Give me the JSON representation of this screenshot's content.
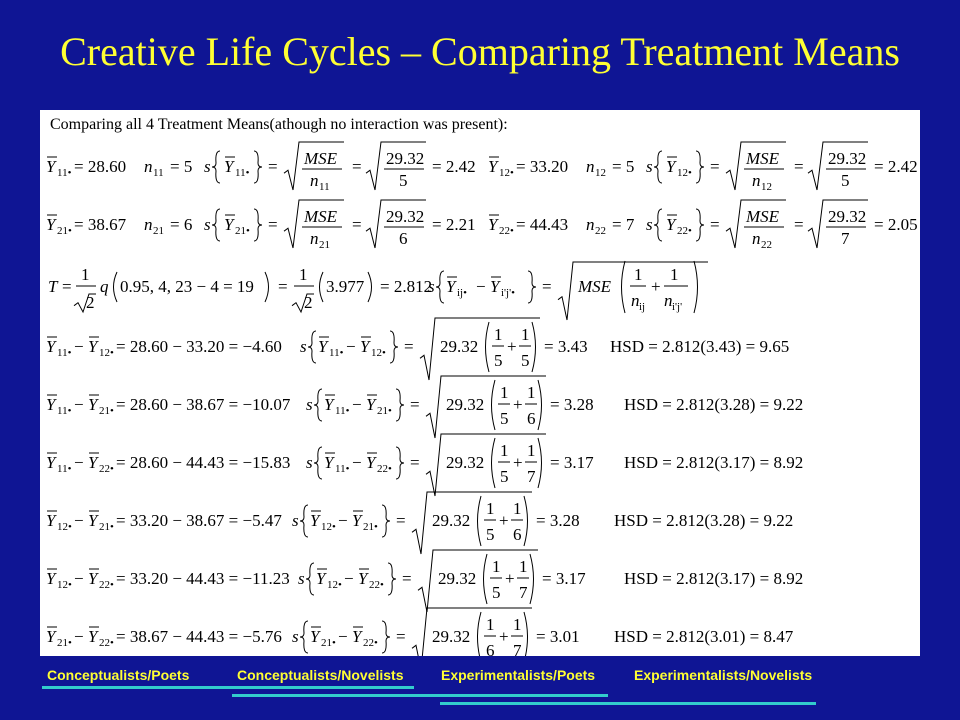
{
  "title": "Creative Life Cycles – Comparing Treatment Means",
  "intro": "Comparing all 4 Treatment Means(athough no interaction was present):",
  "means": [
    {
      "id": "11",
      "sub": "11",
      "mean": "28.60",
      "n": "5",
      "denom": "5",
      "se": "2.42"
    },
    {
      "id": "12",
      "sub": "12",
      "mean": "33.20",
      "n": "5",
      "denom": "5",
      "se": "2.42"
    },
    {
      "id": "21",
      "sub": "21",
      "mean": "38.67",
      "n": "6",
      "denom": "6",
      "se": "2.21"
    },
    {
      "id": "22",
      "sub": "22",
      "mean": "44.43",
      "n": "7",
      "denom": "7",
      "se": "2.05"
    }
  ],
  "mse": "29.32",
  "tukey": {
    "q_args": "0.95, 4, 23 − 4 = 19",
    "q_value": "3.977",
    "T": "2.812"
  },
  "comparisons": [
    {
      "a": "11",
      "b": "12",
      "expr": "28.60 − 33.20 = −4.60",
      "f1": "5",
      "f2": "5",
      "op": "+",
      "se": "3.43",
      "hsd": "HSD = 2.812(3.43) = 9.65"
    },
    {
      "a": "11",
      "b": "21",
      "expr": "28.60 − 38.67 = −10.07",
      "f1": "5",
      "f2": "6",
      "op": "+",
      "se": "3.28",
      "hsd": "HSD = 2.812(3.28) = 9.22"
    },
    {
      "a": "11",
      "b": "22",
      "expr": "28.60 − 44.43 = −15.83",
      "f1": "5",
      "f2": "7",
      "op": "+",
      "se": "3.17",
      "hsd": "HSD = 2.812(3.17) = 8.92"
    },
    {
      "a": "12",
      "b": "21",
      "expr": "33.20 − 38.67 = −5.47",
      "f1": "5",
      "f2": "6",
      "op": "+",
      "se": "3.28",
      "hsd": "HSD = 2.812(3.28) = 9.22"
    },
    {
      "a": "12",
      "b": "22",
      "expr": "33.20 − 44.43 = −11.23",
      "f1": "5",
      "f2": "7",
      "op": "+",
      "se": "3.17",
      "hsd": "HSD = 2.812(3.17) = 8.92"
    },
    {
      "a": "21",
      "b": "22",
      "expr": "38.67 − 44.43 = −5.76",
      "f1": "6",
      "f2": "7",
      "op": "+",
      "se": "3.01",
      "hsd": "HSD = 2.812(3.01) = 8.47"
    }
  ],
  "legend": [
    "Conceptualists/Poets",
    "Conceptualists/Novelists",
    "Experimentalists/Poets",
    "Experimentalists/Novelists"
  ],
  "colors": {
    "background": "#0f1594",
    "title": "#ffff33",
    "legend": "#ffff33",
    "underline": "#33cccc"
  }
}
